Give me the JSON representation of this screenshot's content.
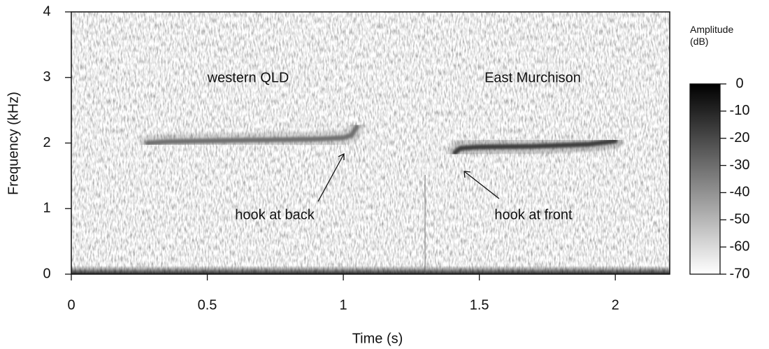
{
  "chart_data": {
    "type": "spectrogram",
    "xlabel": "Time (s)",
    "ylabel": "Frequency (kHz)",
    "xlim": [
      0,
      2.2
    ],
    "ylim": [
      0,
      4
    ],
    "xticks": [
      0,
      0.5,
      1,
      1.5,
      2
    ],
    "yticks": [
      0,
      1,
      2,
      3,
      4
    ],
    "traces": [
      {
        "color": "#707070",
        "x": [
          0.28,
          0.35,
          0.6,
          0.9,
          1.0,
          1.03,
          1.05
        ],
        "y": [
          2.0,
          2.02,
          2.04,
          2.06,
          2.08,
          2.12,
          2.25
        ]
      },
      {
        "color": "#3c3c3c",
        "x": [
          1.41,
          1.43,
          1.5,
          1.7,
          1.9,
          2.0
        ],
        "y": [
          1.85,
          1.92,
          1.94,
          1.95,
          1.98,
          2.03
        ]
      }
    ],
    "annotations": [
      "western QLD",
      "East Murchison",
      "hook at back",
      "hook at front"
    ],
    "colorbar": {
      "title": "Amplitude (dB)",
      "lim": [
        -70,
        0
      ],
      "ticks": [
        0,
        -10,
        -20,
        -30,
        -40,
        -50,
        -60,
        -70
      ],
      "colors": [
        "#ffffff",
        "#000000"
      ]
    }
  }
}
